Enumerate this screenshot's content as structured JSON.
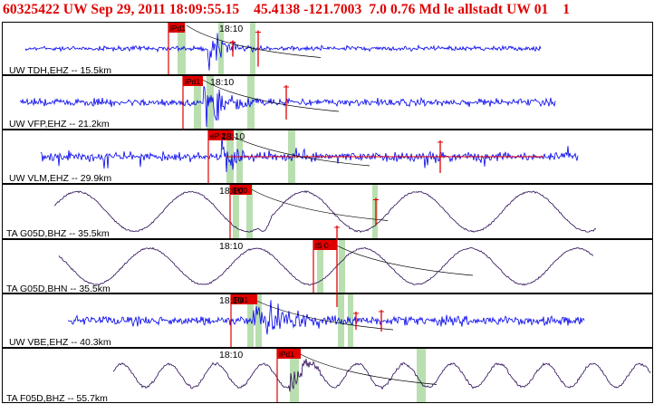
{
  "header": {
    "text": "60325422 UW Sep 29, 2011 18:09:55.15    45.4138 -121.7003  7.0 0.76 Md le allstadt UW 01    1"
  },
  "colors": {
    "header": "#e00000",
    "blue_trace": "#0000ee",
    "purple_trace": "#2a0a55",
    "pick_marker": "#e00000",
    "pick_label_bg": "#e00000",
    "window_band": "#b9dfb0",
    "border": "#000000"
  },
  "icons": {
    "pick_marker": "red-vertical-tick"
  },
  "panels": [
    {
      "label": "UW TDH,EHZ -- 15.5km",
      "time": "18:10",
      "pick": "iPd1",
      "trace": "blue"
    },
    {
      "label": "UW VFP,EHZ -- 21.2km",
      "time": "18:10",
      "pick": "iPd1",
      "trace": "blue"
    },
    {
      "label": "UW VLM,EHZ -- 29.9km",
      "time": "18:10",
      "pick": "eP 2",
      "trace": "blue"
    },
    {
      "label": "TA G05D,BHZ -- 35.5km",
      "time": "18:10",
      "pick": "iPd0",
      "trace": "purple"
    },
    {
      "label": "TA G05D,BHN -- 35.5km",
      "time": "18:10",
      "pick": "iS 0",
      "trace": "purple"
    },
    {
      "label": "UW VBE,EHZ -- 40.3km",
      "time": "18:10",
      "pick": "iPd1",
      "trace": "blue"
    },
    {
      "label": "TA F05D,BHZ -- 55.7km",
      "time": "18:10",
      "pick": "iPd1",
      "trace": "purple"
    }
  ]
}
